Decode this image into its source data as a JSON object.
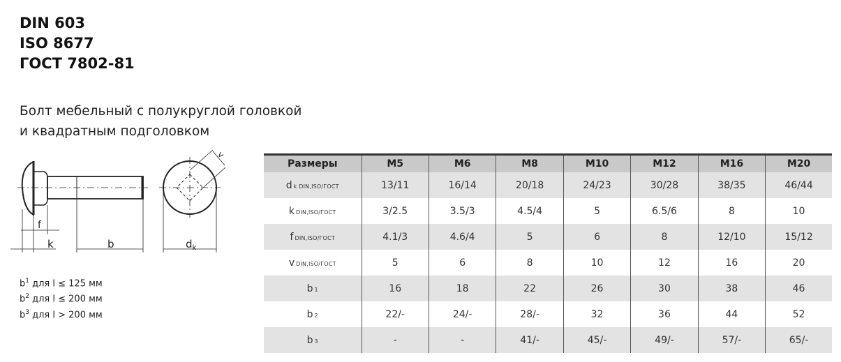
{
  "standards": [
    "DIN 603",
    "ISO 8677",
    "ГОСТ 7802-81"
  ],
  "description": [
    "Болт мебельный с полукруглой головкой",
    "и квадратным подголовком"
  ],
  "drawing_labels": {
    "f": "f",
    "k": "k",
    "b": "b",
    "dk": "d",
    "dk_sub": "k",
    "v": "v"
  },
  "notes": [
    {
      "sym": "b",
      "sup": "1",
      "text": " для l ≤ 125 мм"
    },
    {
      "sym": "b",
      "sup": "2",
      "text": " для l ≤ 200 мм"
    },
    {
      "sym": "b",
      "sup": "3",
      "text": " для l > 200 мм"
    }
  ],
  "table": {
    "headers": [
      "Размеры",
      "M5",
      "M6",
      "M8",
      "M10",
      "M12",
      "M16",
      "M20"
    ],
    "rows": [
      {
        "label": "d",
        "sub": "k DIN,ISO/ГОСТ",
        "values": [
          "13/11",
          "16/14",
          "20/18",
          "24/23",
          "30/28",
          "38/35",
          "46/44"
        ]
      },
      {
        "label": "k",
        "sub": "DIN,ISO/ГОСТ",
        "values": [
          "3/2.5",
          "3.5/3",
          "4.5/4",
          "5",
          "6.5/6",
          "8",
          "10"
        ]
      },
      {
        "label": "f",
        "sub": "DIN,ISO/ГОСТ",
        "values": [
          "4.1/3",
          "4.6/4",
          "5",
          "6",
          "8",
          "12/10",
          "15/12"
        ]
      },
      {
        "label": "v",
        "sub": "DIN,ISO/ГОСТ",
        "values": [
          "5",
          "6",
          "8",
          "10",
          "12",
          "16",
          "20"
        ]
      },
      {
        "label": "b",
        "sub": "1",
        "values": [
          "16",
          "18",
          "22",
          "26",
          "30",
          "38",
          "46"
        ]
      },
      {
        "label": "b",
        "sub": "2",
        "values": [
          "22/-",
          "24/-",
          "28/-",
          "32",
          "36",
          "44",
          "52"
        ]
      },
      {
        "label": "b",
        "sub": "3",
        "values": [
          "-",
          "-",
          "41/-",
          "45/-",
          "49/-",
          "57/-",
          "65/-"
        ]
      }
    ]
  }
}
